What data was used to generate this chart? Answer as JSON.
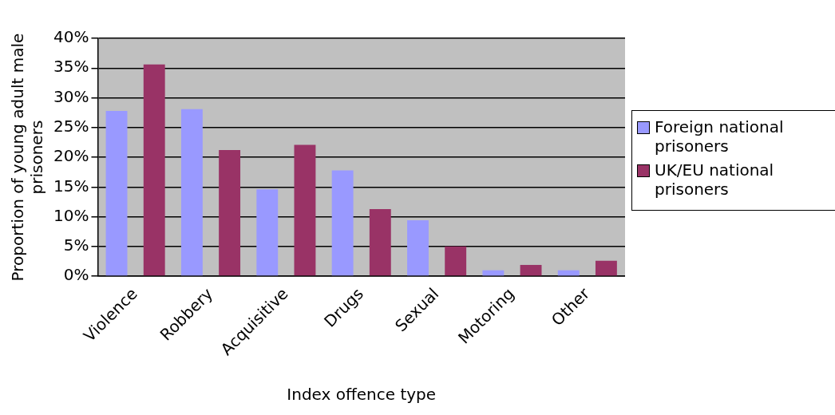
{
  "chart_data": {
    "type": "bar",
    "xlabel": "Index offence type",
    "ylabel": "Proportion of young adult male prisoners",
    "categories": [
      "Violence",
      "Robbery",
      "Acquisitive",
      "Drugs",
      "Sexual",
      "Motoring",
      "Other"
    ],
    "series": [
      {
        "name": "Foreign national prisoners",
        "color": "#9999ff",
        "values": [
          27.8,
          28.1,
          14.6,
          17.8,
          9.4,
          1.0,
          1.0
        ]
      },
      {
        "name": "UK/EU national prisoners",
        "color": "#993366",
        "values": [
          35.6,
          21.2,
          22.1,
          11.3,
          5.0,
          1.9,
          2.6
        ]
      }
    ],
    "ylim": [
      0,
      40
    ],
    "yticks": [
      {
        "value": 0,
        "label": "0%"
      },
      {
        "value": 5,
        "label": "5%"
      },
      {
        "value": 10,
        "label": "10%"
      },
      {
        "value": 15,
        "label": "15%"
      },
      {
        "value": 20,
        "label": "20%"
      },
      {
        "value": 25,
        "label": "25%"
      },
      {
        "value": 30,
        "label": "30%"
      },
      {
        "value": 35,
        "label": "35%"
      },
      {
        "value": 40,
        "label": "40%"
      }
    ],
    "grid": "y",
    "legend": "right"
  }
}
